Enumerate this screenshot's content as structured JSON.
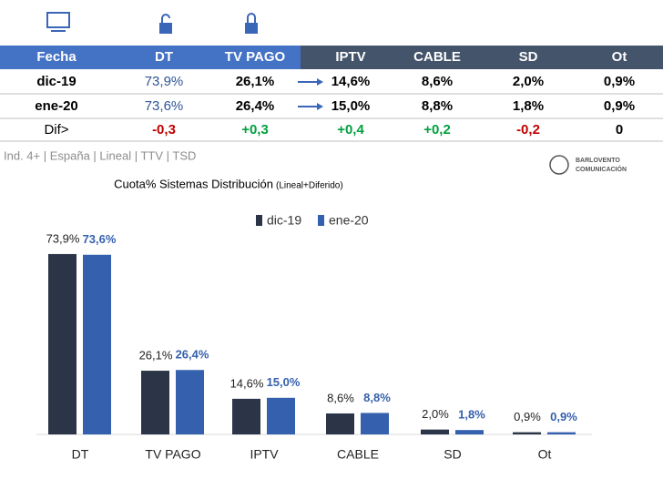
{
  "table": {
    "header": [
      "Fecha",
      "DT",
      "TV PAGO",
      "IPTV",
      "CABLE",
      "SD",
      "Ot"
    ],
    "rows": [
      [
        "dic-19",
        "73,9%",
        "26,1%",
        "14,6%",
        "8,6%",
        "2,0%",
        "0,9%"
      ],
      [
        "ene-20",
        "73,6%",
        "26,4%",
        "15,0%",
        "8,8%",
        "1,8%",
        "0,9%"
      ],
      [
        "Dif>",
        "-0,3",
        "+0,3",
        "+0,4",
        "+0,2",
        "-0,2",
        "0"
      ]
    ]
  },
  "note": "Ind. 4+ | España | Lineal | TTV | TSD",
  "logo": {
    "line1": "BARLOVENTO",
    "line2": "COMUNICACIÓN"
  },
  "chart_data": {
    "type": "bar",
    "title": "Cuota% Sistemas Distribución",
    "subtitle": "(Lineal+Diferido)",
    "categories": [
      "DT",
      "TV PAGO",
      "IPTV",
      "CABLE",
      "SD",
      "Ot"
    ],
    "series": [
      {
        "name": "dic-19",
        "color": "#2b3547",
        "values": [
          73.9,
          26.1,
          14.6,
          8.6,
          2.0,
          0.9
        ],
        "value_labels": [
          "73,9%",
          "26,1%",
          "14,6%",
          "8,6%",
          "2,0%",
          "0,9%"
        ]
      },
      {
        "name": "ene-20",
        "color": "#3560ad",
        "values": [
          73.6,
          26.4,
          15.0,
          8.8,
          1.8,
          0.9
        ],
        "value_labels": [
          "73,6%",
          "26,4%",
          "15,0%",
          "8,8%",
          "1,8%",
          "0,9%"
        ]
      }
    ]
  }
}
